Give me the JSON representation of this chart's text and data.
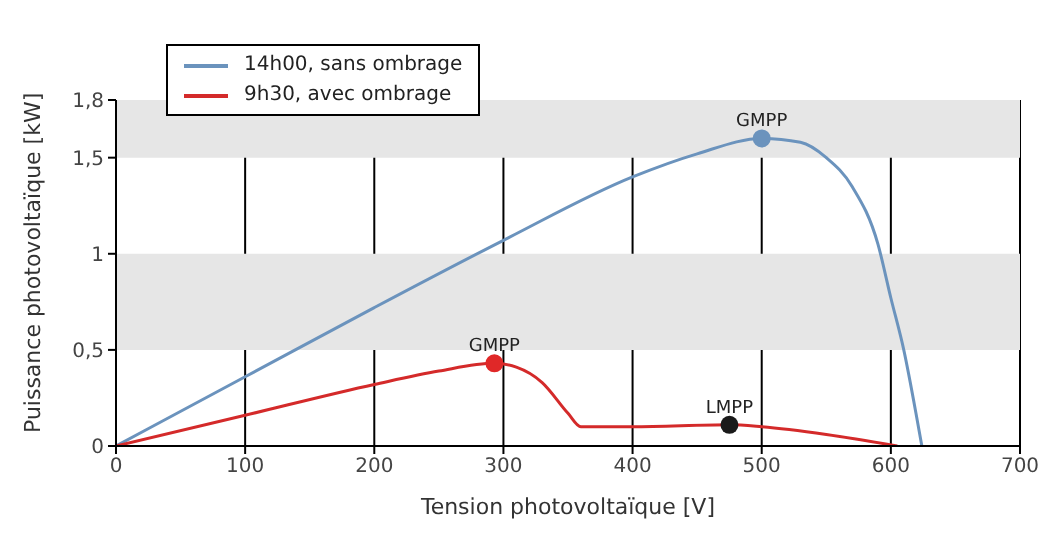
{
  "chart_data": {
    "type": "line",
    "xlabel": "Tension photovoltaïque [V]",
    "ylabel": "Puissance photovoltaïque [kW]",
    "xlim": [
      0,
      700
    ],
    "xticks": [
      0,
      100,
      200,
      300,
      400,
      500,
      600,
      700
    ],
    "ylim": [
      0,
      1.8
    ],
    "yticks": [
      0,
      {
        "value": 0.5,
        "label": "0,5"
      },
      1,
      {
        "value": 1.5,
        "label": "1,5"
      },
      {
        "value": 1.8,
        "label": "1,8"
      }
    ],
    "grid": "x",
    "legend": "top left",
    "bands": [
      {
        "axis": "y",
        "from": 0.5,
        "to": 1,
        "color": "#e6e6e6"
      },
      {
        "axis": "y",
        "from": 1.5,
        "to": 1.8,
        "color": "#e6e6e6"
      }
    ],
    "series": [
      {
        "name": "14h00, sans ombrage",
        "color": "#6b93bd",
        "x": [
          0,
          100,
          200,
          300,
          400,
          450,
          500,
          530,
          550,
          570,
          590,
          600,
          610,
          620,
          624
        ],
        "values": [
          0,
          0.36,
          0.72,
          1.07,
          1.4,
          1.52,
          1.6,
          1.58,
          1.5,
          1.35,
          1.05,
          0.77,
          0.5,
          0.15,
          0
        ]
      },
      {
        "name": "9h30, avec ombrage",
        "color": "#d42a2a",
        "x": [
          0,
          100,
          200,
          250,
          293,
          310,
          330,
          350,
          360,
          400,
          475,
          500,
          550,
          605
        ],
        "values": [
          0,
          0.16,
          0.32,
          0.39,
          0.43,
          0.41,
          0.33,
          0.17,
          0.1,
          0.1,
          0.11,
          0.1,
          0.06,
          0
        ]
      },
      {
        "type": "scatter",
        "color": "#6b93bd",
        "x": [
          500
        ],
        "values": [
          1.6
        ]
      },
      {
        "type": "scatter",
        "color": "#e02828",
        "x": [
          293
        ],
        "values": [
          0.43
        ]
      },
      {
        "type": "scatter",
        "color": "#1a1a1a",
        "x": [
          475
        ],
        "values": [
          0.11
        ]
      }
    ],
    "annotations": [
      {
        "text": "GMPP",
        "x": 500,
        "y": 1.6
      },
      {
        "text": "GMPP",
        "x": 293,
        "y": 0.43
      },
      {
        "text": "LMPP",
        "x": 475,
        "y": 0.11
      }
    ]
  }
}
